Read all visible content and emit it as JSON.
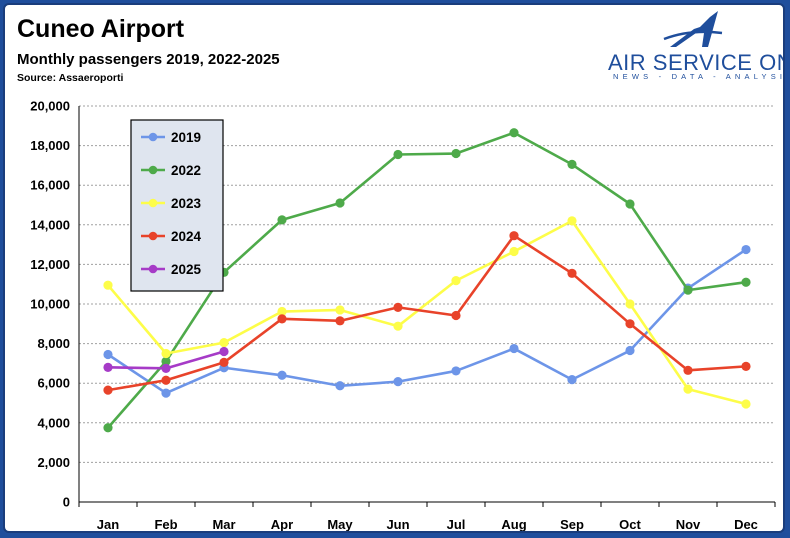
{
  "header": {
    "title": "Cuneo Airport",
    "subtitle": "Monthly passengers 2019, 2022-2025",
    "source": "Source: Assaeroporti"
  },
  "brand": {
    "logo_text": "AIR SERVICE ONE",
    "logo_tagline": "NEWS - DATA - ANALYSIS",
    "color": "#1f4e9c"
  },
  "chart_data": {
    "type": "line",
    "title": "Cuneo Airport",
    "categories": [
      "Jan",
      "Feb",
      "Mar",
      "Apr",
      "May",
      "Jun",
      "Jul",
      "Aug",
      "Sep",
      "Oct",
      "Nov",
      "Dec"
    ],
    "ylim": [
      0,
      20000
    ],
    "yticks": [
      0,
      2000,
      4000,
      6000,
      8000,
      10000,
      12000,
      14000,
      16000,
      18000,
      20000
    ],
    "ytick_labels": [
      "0",
      "2,000",
      "4,000",
      "6,000",
      "8,000",
      "10,000",
      "12,000",
      "14,000",
      "16,000",
      "18,000",
      "20,000"
    ],
    "grid": true,
    "legend_position": "top-left",
    "series": [
      {
        "name": "2019",
        "color": "#6d95e8",
        "values": [
          7450,
          5500,
          6780,
          6400,
          5870,
          6080,
          6620,
          7750,
          6180,
          7650,
          10800,
          12750
        ]
      },
      {
        "name": "2022",
        "color": "#4eaa4a",
        "values": [
          3750,
          7100,
          11600,
          14250,
          15100,
          17550,
          17600,
          18650,
          17050,
          15050,
          10700,
          11100
        ]
      },
      {
        "name": "2023",
        "color": "#fdfd49",
        "values": [
          10950,
          7500,
          8050,
          9620,
          9700,
          8880,
          11180,
          12650,
          14200,
          10000,
          5700,
          4950
        ]
      },
      {
        "name": "2024",
        "color": "#e8432a",
        "values": [
          5650,
          6150,
          7050,
          9250,
          9150,
          9830,
          9420,
          13450,
          11550,
          9000,
          6650,
          6850
        ]
      },
      {
        "name": "2025",
        "color": "#a63bc7",
        "values": [
          6800,
          6750,
          7600,
          null,
          null,
          null,
          null,
          null,
          null,
          null,
          null,
          null
        ]
      }
    ]
  }
}
